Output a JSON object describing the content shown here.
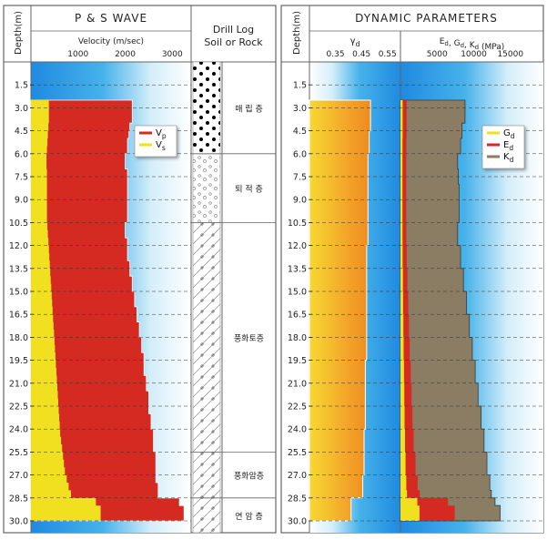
{
  "left_panel": {
    "depth_header": "Depth(m)",
    "title": "P & S WAVE",
    "velocity_label": "Velocity (m/sec)",
    "velocity_ticks": [
      "1000",
      "2000",
      "3000"
    ],
    "drill_title_1": "Drill Log",
    "drill_title_2": "Soil or Rock",
    "legend": [
      {
        "label": "Vp",
        "color": "#d42a22"
      },
      {
        "label": "Vs",
        "color": "#f0e020"
      }
    ]
  },
  "right_panel": {
    "depth_header": "Depth(m)",
    "title": "DYNAMIC PARAMETERS",
    "poisson_label": "γd",
    "poisson_ticks": [
      "0.35",
      "0.45",
      "0.55"
    ],
    "modulus_label": "Ed, Gd, Kd (MPa)",
    "modulus_ticks": [
      "5000",
      "10000",
      "15000"
    ],
    "legend": [
      {
        "label": "Gd",
        "color": "#f0e020"
      },
      {
        "label": "Ed",
        "color": "#d42a22"
      },
      {
        "label": "Kd",
        "color": "#8a7d64"
      }
    ]
  },
  "soil_layers": [
    {
      "label": "매 립 층",
      "top": 0.0,
      "bottom": 6.0,
      "pattern": "dots"
    },
    {
      "label": "퇴 적 층",
      "top": 6.0,
      "bottom": 10.5,
      "pattern": "gravel"
    },
    {
      "label": "풍화토층",
      "top": 10.5,
      "bottom": 25.5,
      "pattern": "cross"
    },
    {
      "label": "풍화암층",
      "top": 25.5,
      "bottom": 28.5,
      "pattern": "cross"
    },
    {
      "label": "연 암 층",
      "top": 28.5,
      "bottom": 30.0,
      "pattern": "cross"
    }
  ],
  "chart_data": [
    {
      "type": "area",
      "title": "P & S WAVE",
      "xlabel": "Velocity (m/sec)",
      "ylabel": "Depth(m)",
      "xlim": [
        0,
        3400
      ],
      "ylim": [
        30.5,
        0
      ],
      "depth_ticks": [
        1.5,
        3.0,
        4.5,
        6.0,
        7.5,
        9.0,
        10.5,
        12.0,
        13.5,
        15.0,
        16.5,
        18.0,
        19.5,
        21.0,
        22.5,
        24.0,
        25.5,
        27.0,
        28.5,
        30.0
      ],
      "depth": [
        2.5,
        3.0,
        3.5,
        4.0,
        4.5,
        5.0,
        5.5,
        6.0,
        6.5,
        7.0,
        7.5,
        8.0,
        8.5,
        9.0,
        9.5,
        10.0,
        10.5,
        11.0,
        11.5,
        12.0,
        12.5,
        13.0,
        13.5,
        14.0,
        14.5,
        15.0,
        15.5,
        16.0,
        16.5,
        17.0,
        17.5,
        18.0,
        18.5,
        19.0,
        19.5,
        20.0,
        20.5,
        21.0,
        21.5,
        22.0,
        22.5,
        23.0,
        23.5,
        24.0,
        24.5,
        25.0,
        25.5,
        26.0,
        26.5,
        27.0,
        27.5,
        28.0,
        28.5,
        29.0,
        29.5
      ],
      "series": [
        {
          "name": "Vp",
          "values": [
            2150,
            2150,
            2150,
            2100,
            2080,
            2050,
            2050,
            2000,
            2000,
            2050,
            2050,
            2050,
            2050,
            2050,
            2050,
            2050,
            2000,
            2000,
            2050,
            2050,
            2050,
            2100,
            2100,
            2150,
            2150,
            2200,
            2200,
            2250,
            2250,
            2300,
            2300,
            2350,
            2350,
            2400,
            2400,
            2400,
            2450,
            2450,
            2500,
            2500,
            2500,
            2550,
            2550,
            2600,
            2600,
            2600,
            2650,
            2650,
            2650,
            2650,
            2700,
            2700,
            3150,
            3250,
            3250
          ]
        },
        {
          "name": "Vs",
          "values": [
            380,
            380,
            380,
            370,
            360,
            350,
            340,
            330,
            330,
            340,
            340,
            340,
            340,
            340,
            340,
            340,
            350,
            360,
            370,
            380,
            390,
            400,
            410,
            420,
            430,
            440,
            450,
            460,
            470,
            480,
            490,
            500,
            510,
            520,
            530,
            540,
            550,
            560,
            570,
            580,
            590,
            600,
            610,
            620,
            640,
            660,
            680,
            700,
            720,
            760,
            800,
            850,
            1380,
            1480,
            1480
          ]
        }
      ]
    },
    {
      "type": "area",
      "title": "DYNAMIC PARAMETERS",
      "xlabel": "γd",
      "ylabel": "Depth(m)",
      "xlim": [
        0.25,
        0.6
      ],
      "ylim": [
        30.5,
        0
      ],
      "depth": [
        2.5,
        3.0,
        4.5,
        6.0,
        7.5,
        9.0,
        10.5,
        12.0,
        13.5,
        15.0,
        16.5,
        18.0,
        19.5,
        21.0,
        22.5,
        24.0,
        25.5,
        27.0,
        28.5,
        29.5
      ],
      "series": [
        {
          "name": "γd",
          "values": [
            0.485,
            0.485,
            0.48,
            0.475,
            0.475,
            0.475,
            0.475,
            0.47,
            0.47,
            0.47,
            0.47,
            0.47,
            0.465,
            0.465,
            0.465,
            0.46,
            0.46,
            0.455,
            0.41,
            0.41
          ]
        }
      ]
    },
    {
      "type": "area",
      "title": "DYNAMIC PARAMETERS",
      "xlabel": "Ed, Gd, Kd (MPa)",
      "ylabel": "Depth(m)",
      "xlim": [
        0,
        19500
      ],
      "ylim": [
        30.5,
        0
      ],
      "depth": [
        2.5,
        3.0,
        4.0,
        5.0,
        6.0,
        7.0,
        8.0,
        9.0,
        10.0,
        10.5,
        12.0,
        13.5,
        15.0,
        16.5,
        18.0,
        19.5,
        21.0,
        22.5,
        24.0,
        25.5,
        27.0,
        28.0,
        28.5,
        29.0,
        29.5
      ],
      "series": [
        {
          "name": "Gd",
          "values": [
            300,
            300,
            300,
            280,
            270,
            270,
            270,
            270,
            270,
            280,
            300,
            330,
            360,
            400,
            440,
            480,
            520,
            560,
            620,
            700,
            800,
            900,
            2300,
            2600,
            2600
          ]
        },
        {
          "name": "Ed",
          "values": [
            850,
            850,
            850,
            800,
            780,
            780,
            780,
            780,
            780,
            800,
            860,
            950,
            1050,
            1150,
            1270,
            1400,
            1520,
            1640,
            1800,
            2050,
            2350,
            2650,
            6500,
            7400,
            7400
          ]
        },
        {
          "name": "Kd",
          "values": [
            8800,
            8800,
            8400,
            8200,
            7800,
            7900,
            8000,
            8000,
            8000,
            7800,
            8200,
            8600,
            9000,
            9400,
            9800,
            10200,
            10600,
            11000,
            11400,
            11800,
            12200,
            12400,
            12900,
            13600,
            13600
          ]
        }
      ]
    }
  ]
}
